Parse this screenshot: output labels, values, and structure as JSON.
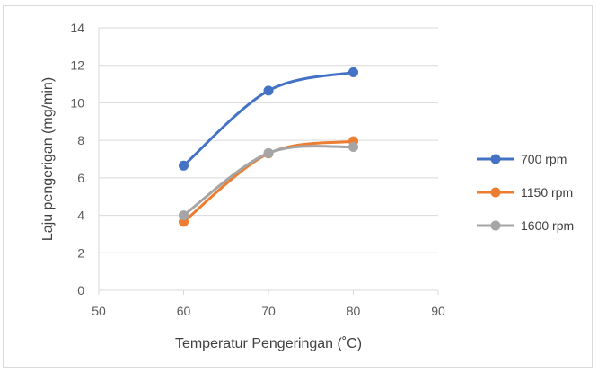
{
  "chart_data": {
    "type": "scatter",
    "xlabel": "Temperatur Pengeringan (˚C)",
    "ylabel": "Laju pengerigan (mg/min)",
    "xlim": [
      50,
      90
    ],
    "ylim": [
      0,
      14
    ],
    "x_ticks": [
      50,
      60,
      70,
      80,
      90
    ],
    "y_ticks": [
      0,
      2,
      4,
      6,
      8,
      10,
      12,
      14
    ],
    "grid": "horizontal",
    "smooth_lines": true,
    "legend_position": "right",
    "series": [
      {
        "name": "700 rpm",
        "color": "#4472c4",
        "x": [
          60,
          70,
          80
        ],
        "y": [
          6.65,
          10.65,
          11.63
        ]
      },
      {
        "name": "1150 rpm",
        "color": "#ed7d31",
        "x": [
          60,
          70,
          80
        ],
        "y": [
          3.65,
          7.3,
          7.95
        ]
      },
      {
        "name": "1600 rpm",
        "color": "#a5a5a5",
        "x": [
          60,
          70,
          80
        ],
        "y": [
          4.0,
          7.32,
          7.65
        ]
      }
    ]
  }
}
